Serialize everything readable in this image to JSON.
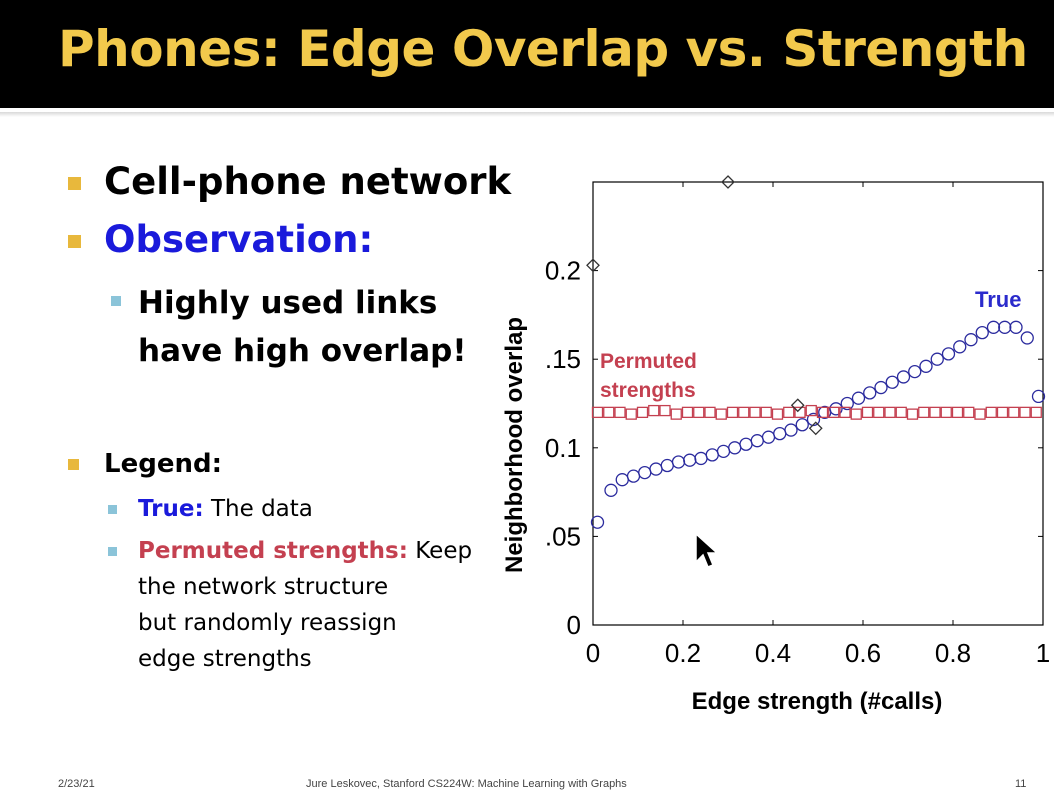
{
  "slide": {
    "title": "Phones: Edge Overlap vs. Strength",
    "bullets": {
      "b1": "Cell-phone network",
      "b2": "Observation:",
      "b2_sub": [
        "Highly used links",
        "have high overlap!"
      ],
      "legend_heading": "Legend:",
      "legend_true_key": "True:",
      "legend_true_text": " The data",
      "legend_perm_key": "Permuted strengths:",
      "legend_perm_text": [
        " Keep",
        "the network structure",
        "but randomly reassign",
        "edge strengths"
      ]
    },
    "footer": {
      "date": "2/23/21",
      "course": "Jure Leskovec, Stanford CS224W: Machine Learning with Graphs",
      "page": "11"
    },
    "colors": {
      "title": "#f2c94c",
      "bullet_l1": "#e8b83c",
      "bullet_l2": "#8bc4d9",
      "true_series": "#2b2b9e",
      "permuted_series": "#c44050"
    }
  },
  "chart_data": {
    "type": "scatter",
    "xlabel": "Edge strength (#calls)",
    "ylabel": "Neighborhood  overlap",
    "xlim": [
      0,
      1
    ],
    "ylim": [
      0,
      0.25
    ],
    "xticks": [
      "0",
      "0.2",
      "0.4",
      "0.6",
      "0.8",
      "1"
    ],
    "yticks": [
      "0",
      ".05",
      "0.1",
      ".15",
      "0.2"
    ],
    "annotations": {
      "true_label": "True",
      "permuted_label": [
        "Permuted",
        "strengths"
      ]
    },
    "series": [
      {
        "name": "True",
        "marker": "circle",
        "color": "#2b2b9e",
        "x": [
          0.01,
          0.04,
          0.065,
          0.09,
          0.115,
          0.14,
          0.165,
          0.19,
          0.215,
          0.24,
          0.265,
          0.29,
          0.315,
          0.34,
          0.365,
          0.39,
          0.415,
          0.44,
          0.465,
          0.49,
          0.515,
          0.54,
          0.565,
          0.59,
          0.615,
          0.64,
          0.665,
          0.69,
          0.715,
          0.74,
          0.765,
          0.79,
          0.815,
          0.84,
          0.865,
          0.89,
          0.915,
          0.94,
          0.965,
          0.99
        ],
        "y": [
          0.058,
          0.076,
          0.082,
          0.084,
          0.086,
          0.088,
          0.09,
          0.092,
          0.093,
          0.094,
          0.096,
          0.098,
          0.1,
          0.102,
          0.104,
          0.106,
          0.108,
          0.11,
          0.113,
          0.116,
          0.12,
          0.122,
          0.125,
          0.128,
          0.131,
          0.134,
          0.137,
          0.14,
          0.143,
          0.146,
          0.15,
          0.153,
          0.157,
          0.161,
          0.165,
          0.168,
          0.168,
          0.168,
          0.162,
          0.129
        ]
      },
      {
        "name": "Permuted strengths",
        "marker": "square",
        "color": "#c44050",
        "x": [
          0.01,
          0.035,
          0.06,
          0.085,
          0.11,
          0.135,
          0.16,
          0.185,
          0.21,
          0.235,
          0.26,
          0.285,
          0.31,
          0.335,
          0.36,
          0.385,
          0.41,
          0.435,
          0.46,
          0.485,
          0.51,
          0.535,
          0.56,
          0.585,
          0.61,
          0.635,
          0.66,
          0.685,
          0.71,
          0.735,
          0.76,
          0.785,
          0.81,
          0.835,
          0.86,
          0.885,
          0.91,
          0.935,
          0.96,
          0.985
        ],
        "y": [
          0.12,
          0.12,
          0.12,
          0.119,
          0.12,
          0.121,
          0.121,
          0.119,
          0.12,
          0.12,
          0.12,
          0.119,
          0.12,
          0.12,
          0.12,
          0.12,
          0.119,
          0.12,
          0.12,
          0.121,
          0.12,
          0.12,
          0.12,
          0.119,
          0.12,
          0.12,
          0.12,
          0.12,
          0.119,
          0.12,
          0.12,
          0.12,
          0.12,
          0.12,
          0.119,
          0.12,
          0.12,
          0.12,
          0.12,
          0.12
        ]
      },
      {
        "marker": "diamond",
        "color": "#333333",
        "x": [
          0.0,
          0.3,
          0.455,
          0.495
        ],
        "y": [
          0.203,
          0.25,
          0.124,
          0.111
        ]
      }
    ]
  }
}
